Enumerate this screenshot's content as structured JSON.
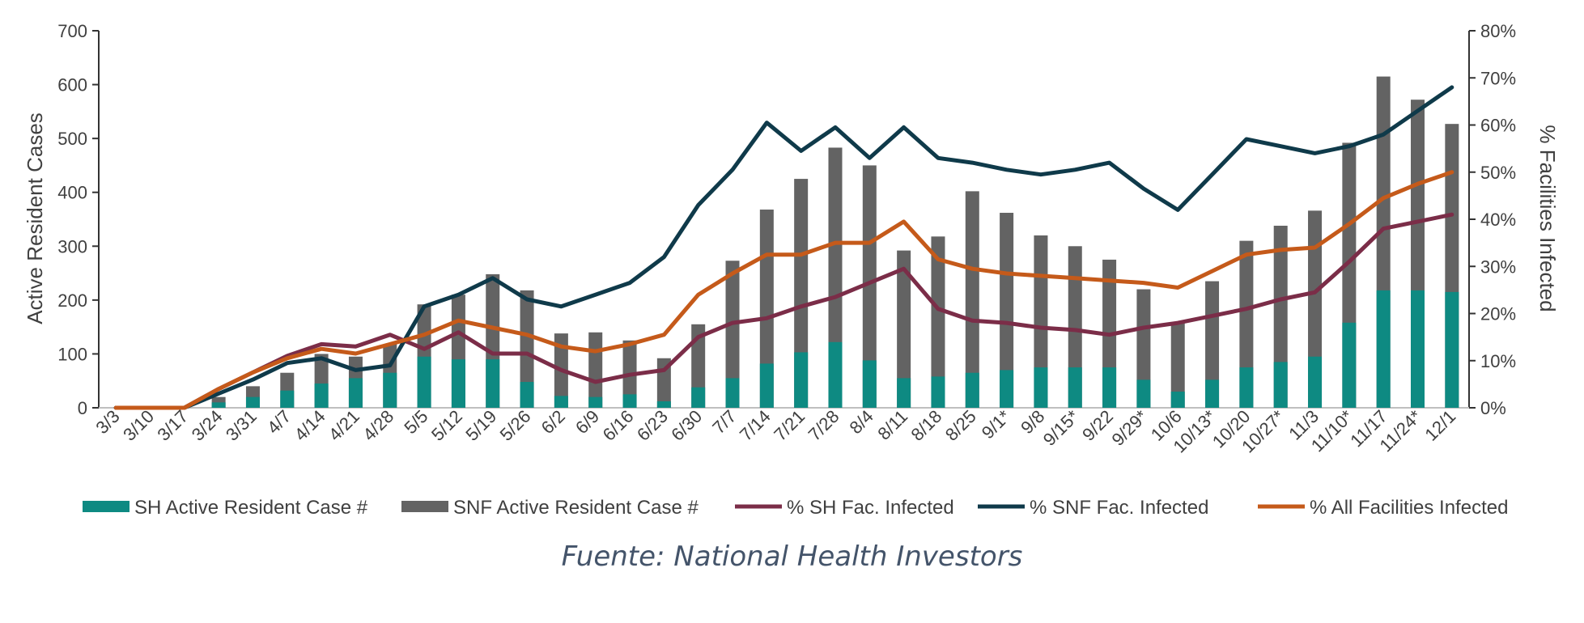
{
  "chart_data": {
    "type": "bar",
    "categories": [
      "3/3",
      "3/10",
      "3/17",
      "3/24",
      "3/31",
      "4/7",
      "4/14",
      "4/21",
      "4/28",
      "5/5",
      "5/12",
      "5/19",
      "5/26",
      "6/2",
      "6/9",
      "6/16",
      "6/23",
      "6/30",
      "7/7",
      "7/14",
      "7/21",
      "7/28",
      "8/4",
      "8/11",
      "8/18",
      "8/25",
      "9/1*",
      "9/8",
      "9/15*",
      "9/22",
      "9/29*",
      "10/6",
      "10/13*",
      "10/20",
      "10/27*",
      "11/3",
      "11/10*",
      "11/17",
      "11/24*",
      "12/1"
    ],
    "ylabel": "Active Resident Cases",
    "y2label": "% Facilities Infected",
    "ylim": [
      0,
      700
    ],
    "y2lim": [
      0,
      80
    ],
    "yticks": [
      "0",
      "100",
      "200",
      "300",
      "400",
      "500",
      "600",
      "700"
    ],
    "y2ticks": [
      "0%",
      "10%",
      "20%",
      "30%",
      "40%",
      "50%",
      "60%",
      "70%",
      "80%"
    ],
    "legend_position": "bottom",
    "grid": false,
    "series": [
      {
        "name": "SH Active Resident Case #",
        "kind": "bar",
        "axis": "left",
        "color": "#0e8a82",
        "values": [
          0,
          0,
          0,
          10,
          20,
          32,
          45,
          55,
          65,
          95,
          90,
          90,
          48,
          22,
          20,
          25,
          12,
          38,
          55,
          82,
          103,
          122,
          88,
          55,
          58,
          65,
          70,
          75,
          75,
          75,
          52,
          30,
          52,
          75,
          85,
          95,
          158,
          218,
          218,
          215
        ]
      },
      {
        "name": "SNF Active Resident Case #",
        "kind": "bar",
        "axis": "left",
        "color": "#636363",
        "values": [
          0,
          0,
          0,
          20,
          40,
          65,
          100,
          95,
          118,
          192,
          210,
          248,
          218,
          138,
          140,
          125,
          92,
          155,
          273,
          368,
          425,
          483,
          450,
          292,
          318,
          402,
          362,
          320,
          300,
          275,
          220,
          158,
          235,
          310,
          338,
          366,
          492,
          615,
          572,
          527
        ]
      },
      {
        "name": "% SH Fac. Infected",
        "kind": "line",
        "axis": "right",
        "color": "#7b2d48",
        "values": [
          0,
          0,
          0,
          4,
          7.5,
          11,
          13.5,
          13,
          15.5,
          12.5,
          16,
          11.5,
          11.5,
          8,
          5.5,
          7,
          8,
          15,
          18,
          19,
          21.5,
          23.5,
          26.5,
          29.5,
          21,
          18.5,
          18,
          17,
          16.5,
          15.5,
          17,
          18,
          19.5,
          21,
          23,
          24.5,
          31,
          38,
          39.5,
          41
        ]
      },
      {
        "name": "% SNF Fac. Infected",
        "kind": "line",
        "axis": "right",
        "color": "#0f3a4a",
        "values": [
          0,
          0,
          0,
          3,
          6,
          9.5,
          10.5,
          8,
          9,
          21.5,
          24,
          27.5,
          23,
          21.5,
          24,
          26.5,
          32,
          43,
          50.5,
          60.5,
          54.5,
          59.5,
          53,
          59.5,
          53,
          52,
          50.5,
          49.5,
          50.5,
          52,
          46.5,
          42,
          49.5,
          57,
          55.5,
          54,
          55.5,
          58,
          63,
          68
        ]
      },
      {
        "name": "% All Facilities Infected",
        "kind": "line",
        "axis": "right",
        "color": "#c55a1a",
        "values": [
          0,
          0,
          0,
          4,
          7.5,
          10.5,
          12.5,
          11.5,
          13.5,
          15.5,
          18.5,
          17,
          15.5,
          13,
          12,
          13.5,
          15.5,
          24,
          28.5,
          32.5,
          32.5,
          35,
          35,
          39.5,
          31.5,
          29.5,
          28.5,
          28,
          27.5,
          27,
          26.5,
          25.5,
          29,
          32.5,
          33.5,
          34,
          39,
          44.5,
          47.5,
          50
        ]
      }
    ]
  },
  "source": "Fuente: National Health Investors"
}
